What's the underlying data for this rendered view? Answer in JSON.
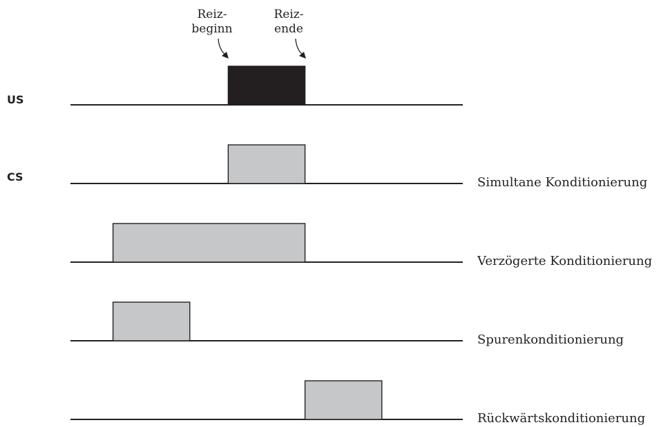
{
  "annotations": {
    "onset": [
      "Reiz-",
      "beginn"
    ],
    "offset": [
      "Reiz-",
      "ende"
    ]
  },
  "labels": {
    "us": "US",
    "cs": "CS"
  },
  "rows": [
    {
      "kind": "us",
      "start": 2.0,
      "end": 3.0,
      "color": "#231f20",
      "label": ""
    },
    {
      "kind": "cs",
      "start": 2.0,
      "end": 3.0,
      "color": "#c6c7c8",
      "label": "Simultane Konditionierung"
    },
    {
      "kind": "cs",
      "start": 0.5,
      "end": 3.0,
      "color": "#c6c7c8",
      "label": "Verzögerte Konditionierung"
    },
    {
      "kind": "cs",
      "start": 0.5,
      "end": 1.5,
      "color": "#c6c7c8",
      "label": "Spurenkonditionierung"
    },
    {
      "kind": "cs",
      "start": 3.0,
      "end": 4.0,
      "color": "#c6c7c8",
      "label": "Rückwärtskonditionierung"
    }
  ],
  "time_range": [
    0,
    5
  ]
}
